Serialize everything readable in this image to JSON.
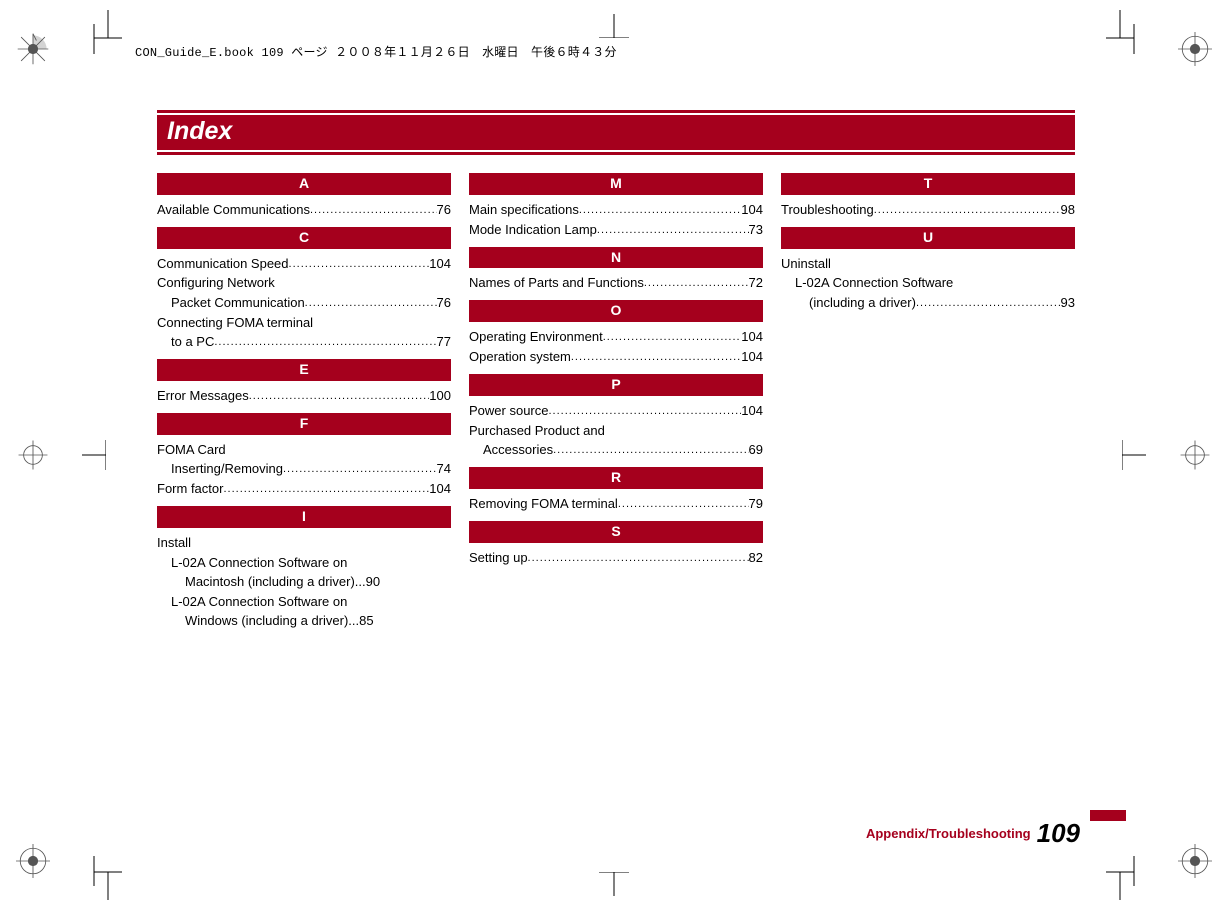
{
  "slug": "CON_Guide_E.book  109 ページ  ２００８年１１月２６日　水曜日　午後６時４３分",
  "title": "Index",
  "footer": {
    "label": "Appendix/Troubleshooting",
    "page": "109"
  },
  "colors": {
    "brand": "#a5001d"
  },
  "columns": [
    [
      {
        "letter": "A",
        "entries": [
          {
            "text": "Available Communications",
            "page": "76"
          }
        ]
      },
      {
        "letter": "C",
        "entries": [
          {
            "text": "Communication Speed",
            "page": "104"
          },
          {
            "text": "Configuring Network"
          },
          {
            "text": "Packet Communication",
            "page": "76",
            "indent": 1
          },
          {
            "text": "Connecting FOMA terminal"
          },
          {
            "text": "to a PC",
            "page": "77",
            "indent": 1
          }
        ]
      },
      {
        "letter": "E",
        "entries": [
          {
            "text": "Error Messages",
            "page": "100"
          }
        ]
      },
      {
        "letter": "F",
        "entries": [
          {
            "text": "FOMA Card"
          },
          {
            "text": "Inserting/Removing",
            "page": "74",
            "indent": 1
          },
          {
            "text": "Form factor",
            "page": "104"
          }
        ]
      },
      {
        "letter": "I",
        "entries": [
          {
            "text": "Install"
          },
          {
            "text": "L-02A Connection Software on",
            "indent": 1
          },
          {
            "text": "Macintosh (including a driver)",
            "page": "90",
            "indent": 2,
            "tight": true
          },
          {
            "text": "L-02A Connection Software on",
            "indent": 1
          },
          {
            "text": "Windows (including a driver)",
            "page": "85",
            "indent": 2,
            "tight": true
          }
        ]
      }
    ],
    [
      {
        "letter": "M",
        "entries": [
          {
            "text": "Main specifications",
            "page": "104"
          },
          {
            "text": "Mode Indication Lamp",
            "page": "73"
          }
        ]
      },
      {
        "letter": "N",
        "entries": [
          {
            "text": "Names of Parts and Functions",
            "page": "72"
          }
        ]
      },
      {
        "letter": "O",
        "entries": [
          {
            "text": "Operating Environment",
            "page": "104"
          },
          {
            "text": "Operation system",
            "page": "104"
          }
        ]
      },
      {
        "letter": "P",
        "entries": [
          {
            "text": "Power source",
            "page": "104"
          },
          {
            "text": "Purchased Product and"
          },
          {
            "text": "Accessories",
            "page": "69",
            "indent": 1
          }
        ]
      },
      {
        "letter": "R",
        "entries": [
          {
            "text": "Removing FOMA terminal",
            "page": "79"
          }
        ]
      },
      {
        "letter": "S",
        "entries": [
          {
            "text": "Setting up",
            "page": "82"
          }
        ]
      }
    ],
    [
      {
        "letter": "T",
        "entries": [
          {
            "text": "Troubleshooting",
            "page": "98"
          }
        ]
      },
      {
        "letter": "U",
        "entries": [
          {
            "text": "Uninstall"
          },
          {
            "text": "L-02A Connection Software",
            "indent": 1
          },
          {
            "text": "(including a driver)",
            "page": "93",
            "indent": 2
          }
        ]
      }
    ]
  ]
}
